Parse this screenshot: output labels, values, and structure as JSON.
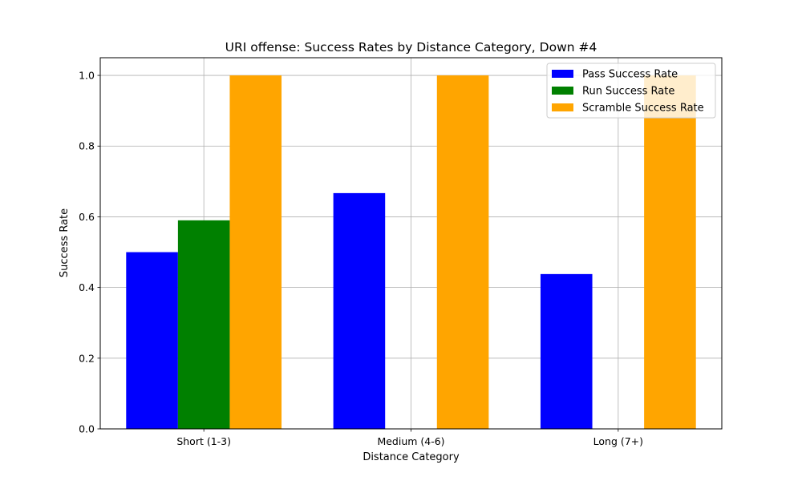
{
  "chart_data": {
    "type": "bar",
    "title": "URI offense: Success Rates by Distance Category, Down #4",
    "xlabel": "Distance Category",
    "ylabel": "Success Rate",
    "categories": [
      "Short (1-3)",
      "Medium (4-6)",
      "Long (7+)"
    ],
    "series": [
      {
        "name": "Pass Success Rate",
        "color": "#0000ff",
        "values": [
          0.5,
          0.667,
          0.438
        ]
      },
      {
        "name": "Run Success Rate",
        "color": "#008000",
        "values": [
          0.59,
          0,
          0
        ]
      },
      {
        "name": "Scramble Success Rate",
        "color": "#ffa500",
        "values": [
          1.0,
          1.0,
          1.0
        ]
      }
    ],
    "ylim": [
      0,
      1.05
    ],
    "yticks": [
      "0.0",
      "0.2",
      "0.4",
      "0.6",
      "0.8",
      "1.0"
    ],
    "grid": true,
    "legend_position": "top-right"
  }
}
